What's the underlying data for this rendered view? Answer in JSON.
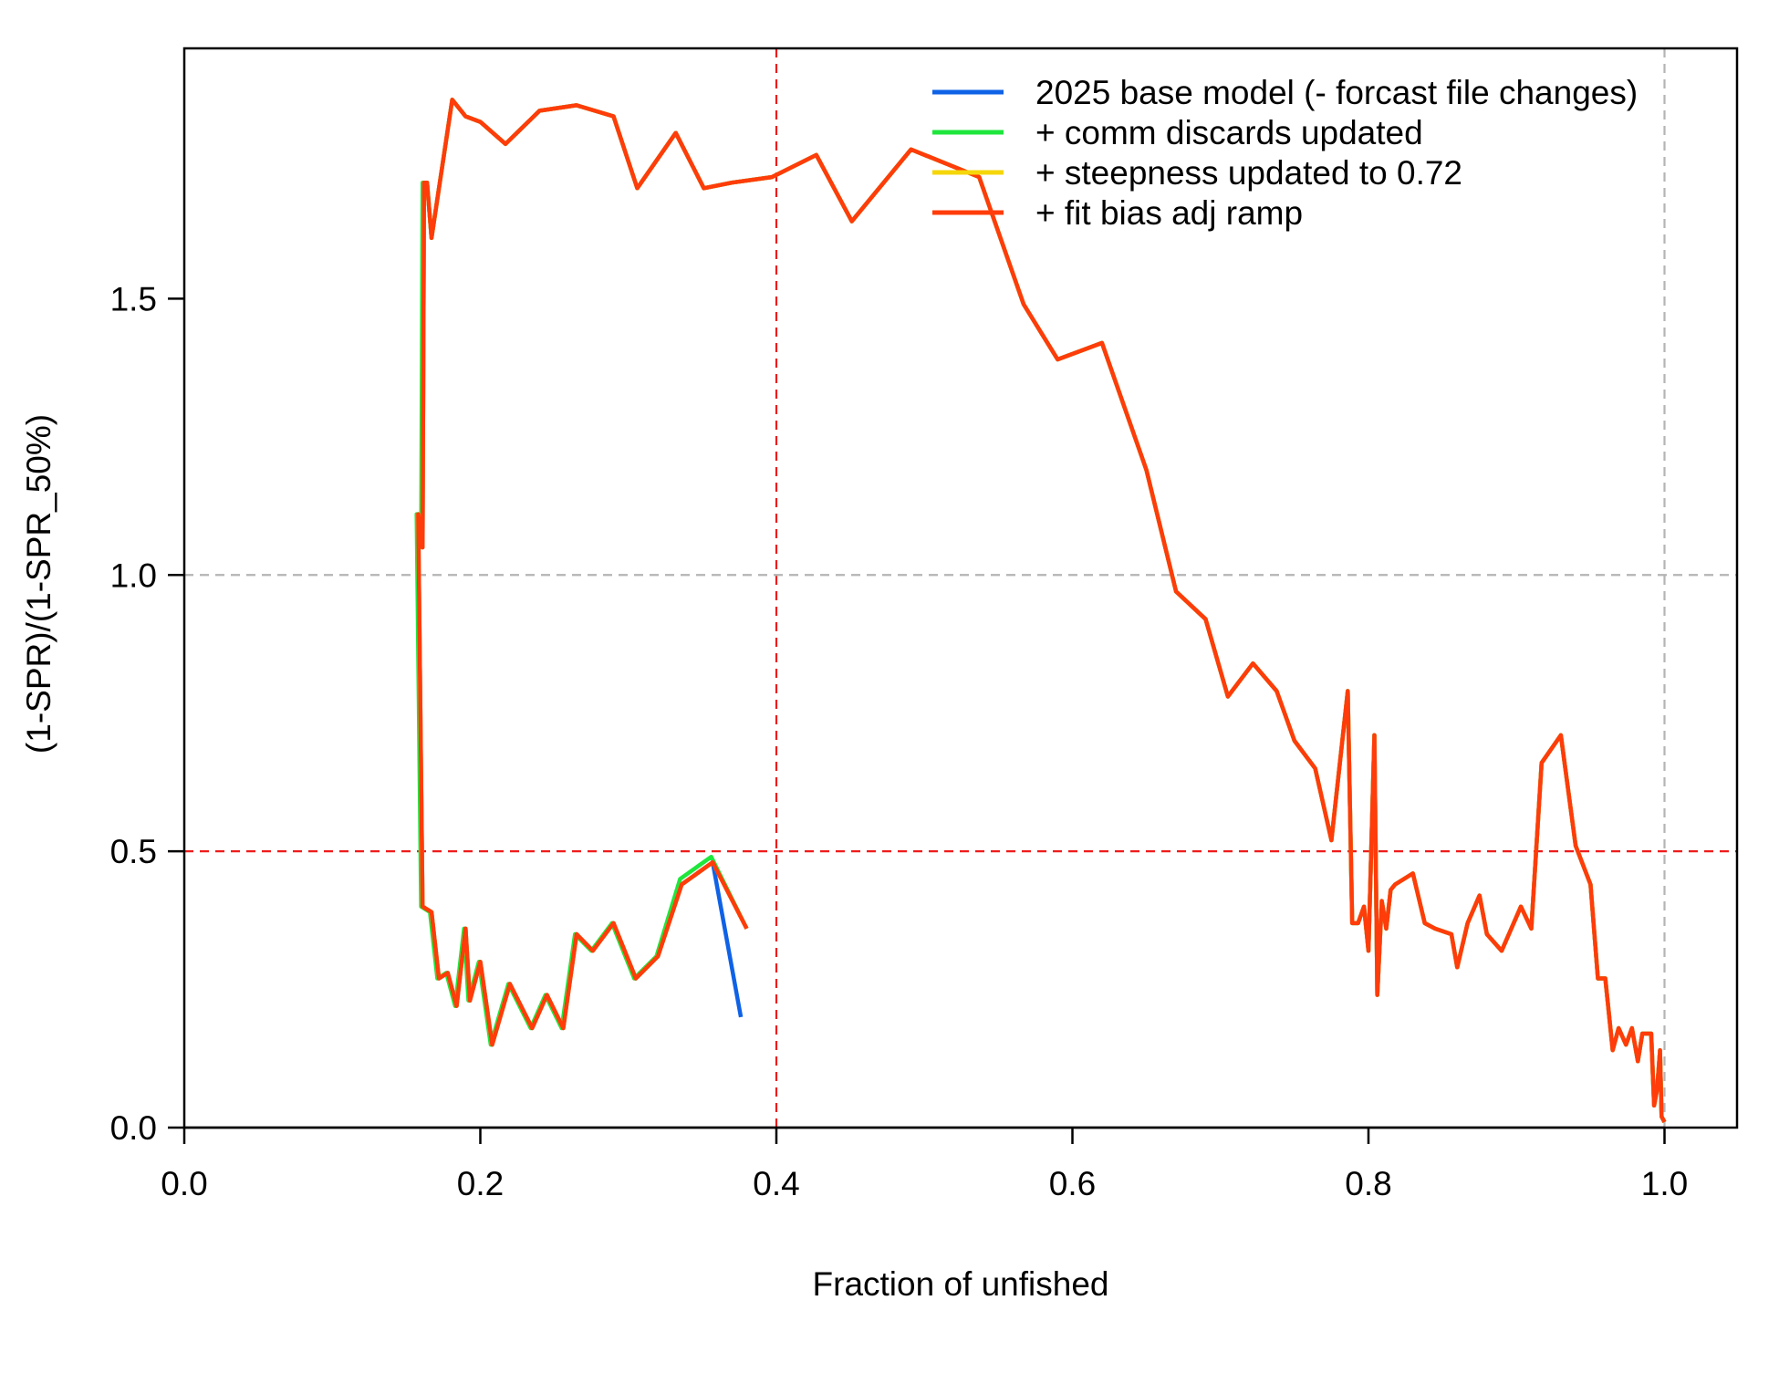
{
  "chart_data": {
    "type": "line",
    "x_label": "Fraction of unfished",
    "y_label": "(1-SPR)/(1-SPR_50%)",
    "xlim": [
      0,
      1.049
    ],
    "ylim": [
      0,
      1.953
    ],
    "xticks": [
      {
        "value": 0,
        "label": "0.0"
      },
      0.2,
      0.4,
      0.6,
      0.8,
      {
        "value": 1,
        "label": "1.0"
      }
    ],
    "yticks": [
      {
        "value": 0,
        "label": "0.0"
      },
      0.5,
      {
        "value": 1,
        "label": "1.0"
      },
      1.5
    ],
    "reference_lines": [
      {
        "axis": "x",
        "value": 0.4,
        "color": "#ee1c1c"
      },
      {
        "axis": "y",
        "value": 0.5,
        "color": "#ee1c1c"
      },
      {
        "axis": "x",
        "value": 1,
        "color": "#b4b4b4"
      },
      {
        "axis": "y",
        "value": 1,
        "color": "#b4b4b4"
      }
    ],
    "legend": "top-right",
    "series": [
      {
        "name": "2025 base model (- forcast file changes)",
        "color": "#0f62e6",
        "x": [
          1.0,
          0.998,
          0.997,
          0.995,
          0.993,
          0.991,
          0.988,
          0.985,
          0.982,
          0.978,
          0.974,
          0.969,
          0.965,
          0.96,
          0.955,
          0.95,
          0.94,
          0.93,
          0.917,
          0.91,
          0.903,
          0.89,
          0.88,
          0.875,
          0.867,
          0.86,
          0.856,
          0.845,
          0.838,
          0.83,
          0.818,
          0.815,
          0.812,
          0.809,
          0.806,
          0.804,
          0.8,
          0.797,
          0.793,
          0.789,
          0.786,
          0.775,
          0.764,
          0.75,
          0.738,
          0.722,
          0.705,
          0.69,
          0.67,
          0.65,
          0.62,
          0.59,
          0.567,
          0.537,
          0.491,
          0.451,
          0.427,
          0.397,
          0.37,
          0.351,
          0.332,
          0.306,
          0.29,
          0.265,
          0.24,
          0.217,
          0.2,
          0.19,
          0.181,
          0.167,
          0.164,
          0.162,
          0.161,
          0.158,
          0.161,
          0.167,
          0.172,
          0.178,
          0.184,
          0.19,
          0.193,
          0.2,
          0.208,
          0.22,
          0.235,
          0.245,
          0.256,
          0.265,
          0.276,
          0.29,
          0.305,
          0.32,
          0.336,
          0.357,
          0.376
        ],
        "values": [
          0.01,
          0.02,
          0.14,
          0.07,
          0.04,
          0.17,
          0.17,
          0.17,
          0.12,
          0.18,
          0.15,
          0.18,
          0.14,
          0.27,
          0.27,
          0.44,
          0.51,
          0.71,
          0.66,
          0.36,
          0.4,
          0.32,
          0.35,
          0.42,
          0.37,
          0.29,
          0.35,
          0.36,
          0.37,
          0.46,
          0.44,
          0.43,
          0.36,
          0.41,
          0.24,
          0.71,
          0.32,
          0.4,
          0.37,
          0.37,
          0.79,
          0.52,
          0.65,
          0.7,
          0.79,
          0.84,
          0.78,
          0.92,
          0.97,
          1.19,
          1.42,
          1.39,
          1.49,
          1.72,
          1.77,
          1.64,
          1.76,
          1.72,
          1.71,
          1.7,
          1.8,
          1.7,
          1.83,
          1.85,
          1.84,
          1.78,
          1.82,
          1.83,
          1.86,
          1.61,
          1.71,
          1.71,
          1.05,
          1.11,
          0.4,
          0.39,
          0.27,
          0.28,
          0.22,
          0.36,
          0.23,
          0.3,
          0.15,
          0.26,
          0.18,
          0.24,
          0.18,
          0.35,
          0.32,
          0.37,
          0.27,
          0.31,
          0.44,
          0.48,
          0.2
        ]
      },
      {
        "name": "+ comm discards updated",
        "color": "#1ee63c",
        "x": [
          1.0,
          0.998,
          0.997,
          0.995,
          0.993,
          0.991,
          0.988,
          0.985,
          0.982,
          0.978,
          0.974,
          0.969,
          0.965,
          0.96,
          0.955,
          0.95,
          0.94,
          0.93,
          0.917,
          0.91,
          0.903,
          0.89,
          0.88,
          0.875,
          0.867,
          0.86,
          0.856,
          0.845,
          0.838,
          0.83,
          0.818,
          0.815,
          0.812,
          0.809,
          0.806,
          0.804,
          0.8,
          0.797,
          0.793,
          0.789,
          0.786,
          0.775,
          0.764,
          0.75,
          0.738,
          0.722,
          0.705,
          0.69,
          0.67,
          0.65,
          0.62,
          0.59,
          0.567,
          0.537,
          0.491,
          0.451,
          0.427,
          0.397,
          0.37,
          0.351,
          0.332,
          0.306,
          0.29,
          0.265,
          0.24,
          0.217,
          0.2,
          0.19,
          0.181,
          0.167,
          0.164,
          0.161,
          0.16,
          0.157,
          0.16,
          0.166,
          0.171,
          0.177,
          0.183,
          0.189,
          0.192,
          0.199,
          0.207,
          0.219,
          0.234,
          0.244,
          0.255,
          0.264,
          0.275,
          0.289,
          0.304,
          0.319,
          0.335,
          0.356,
          0.38
        ],
        "values": [
          0.01,
          0.02,
          0.14,
          0.07,
          0.04,
          0.17,
          0.17,
          0.17,
          0.12,
          0.18,
          0.15,
          0.18,
          0.14,
          0.27,
          0.27,
          0.44,
          0.51,
          0.71,
          0.66,
          0.36,
          0.4,
          0.32,
          0.35,
          0.42,
          0.37,
          0.29,
          0.35,
          0.36,
          0.37,
          0.46,
          0.44,
          0.43,
          0.36,
          0.41,
          0.24,
          0.71,
          0.32,
          0.4,
          0.37,
          0.37,
          0.79,
          0.52,
          0.65,
          0.7,
          0.79,
          0.84,
          0.78,
          0.92,
          0.97,
          1.19,
          1.42,
          1.39,
          1.49,
          1.72,
          1.77,
          1.64,
          1.76,
          1.72,
          1.71,
          1.7,
          1.8,
          1.7,
          1.83,
          1.85,
          1.84,
          1.78,
          1.82,
          1.83,
          1.86,
          1.61,
          1.71,
          1.71,
          1.05,
          1.11,
          0.4,
          0.39,
          0.27,
          0.28,
          0.22,
          0.36,
          0.23,
          0.3,
          0.15,
          0.26,
          0.18,
          0.24,
          0.18,
          0.35,
          0.32,
          0.37,
          0.27,
          0.31,
          0.45,
          0.49,
          0.36
        ]
      },
      {
        "name": "+ steepness updated to 0.72",
        "color": "#f5d60a",
        "x": [
          1.0,
          0.998,
          0.997,
          0.995,
          0.993,
          0.991,
          0.988,
          0.985,
          0.982,
          0.978,
          0.974,
          0.969,
          0.965,
          0.96,
          0.955,
          0.95,
          0.94,
          0.93,
          0.917,
          0.91,
          0.903,
          0.89,
          0.88,
          0.875,
          0.867,
          0.86,
          0.856,
          0.845,
          0.838,
          0.83,
          0.818,
          0.815,
          0.812,
          0.809,
          0.806,
          0.804,
          0.8,
          0.797,
          0.793,
          0.789,
          0.786,
          0.775,
          0.764,
          0.75,
          0.738,
          0.722,
          0.705,
          0.69,
          0.67,
          0.65,
          0.62,
          0.59,
          0.567,
          0.537,
          0.491,
          0.451,
          0.427,
          0.397,
          0.37,
          0.351,
          0.332,
          0.306,
          0.29,
          0.265,
          0.24,
          0.217,
          0.2,
          0.19,
          0.181,
          0.167,
          0.164,
          0.162,
          0.161,
          0.158,
          0.161,
          0.167,
          0.172,
          0.178,
          0.184,
          0.19,
          0.193,
          0.2,
          0.208,
          0.22,
          0.235,
          0.245,
          0.256,
          0.265,
          0.276,
          0.29,
          0.305,
          0.32,
          0.336,
          0.357,
          0.38
        ],
        "values": [
          0.01,
          0.02,
          0.14,
          0.07,
          0.04,
          0.17,
          0.17,
          0.17,
          0.12,
          0.18,
          0.15,
          0.18,
          0.14,
          0.27,
          0.27,
          0.44,
          0.51,
          0.71,
          0.66,
          0.36,
          0.4,
          0.32,
          0.35,
          0.42,
          0.37,
          0.29,
          0.35,
          0.36,
          0.37,
          0.46,
          0.44,
          0.43,
          0.36,
          0.41,
          0.24,
          0.71,
          0.32,
          0.4,
          0.37,
          0.37,
          0.79,
          0.52,
          0.65,
          0.7,
          0.79,
          0.84,
          0.78,
          0.92,
          0.97,
          1.19,
          1.42,
          1.39,
          1.49,
          1.72,
          1.77,
          1.64,
          1.76,
          1.72,
          1.71,
          1.7,
          1.8,
          1.7,
          1.83,
          1.85,
          1.84,
          1.78,
          1.82,
          1.83,
          1.86,
          1.61,
          1.71,
          1.71,
          1.05,
          1.11,
          0.4,
          0.39,
          0.27,
          0.28,
          0.22,
          0.36,
          0.23,
          0.3,
          0.15,
          0.26,
          0.18,
          0.24,
          0.18,
          0.35,
          0.32,
          0.37,
          0.27,
          0.31,
          0.44,
          0.48,
          0.36
        ]
      },
      {
        "name": "+ fit bias adj ramp",
        "color": "#ff3c0a",
        "x": [
          1.0,
          0.998,
          0.997,
          0.995,
          0.993,
          0.991,
          0.988,
          0.985,
          0.982,
          0.978,
          0.974,
          0.969,
          0.965,
          0.96,
          0.955,
          0.95,
          0.94,
          0.93,
          0.917,
          0.91,
          0.903,
          0.89,
          0.88,
          0.875,
          0.867,
          0.86,
          0.856,
          0.845,
          0.838,
          0.83,
          0.818,
          0.815,
          0.812,
          0.809,
          0.806,
          0.804,
          0.8,
          0.797,
          0.793,
          0.789,
          0.786,
          0.775,
          0.764,
          0.75,
          0.738,
          0.722,
          0.705,
          0.69,
          0.67,
          0.65,
          0.62,
          0.59,
          0.567,
          0.537,
          0.491,
          0.451,
          0.427,
          0.397,
          0.37,
          0.351,
          0.332,
          0.306,
          0.29,
          0.265,
          0.24,
          0.217,
          0.2,
          0.19,
          0.181,
          0.167,
          0.164,
          0.162,
          0.161,
          0.158,
          0.161,
          0.167,
          0.172,
          0.178,
          0.184,
          0.19,
          0.193,
          0.2,
          0.208,
          0.22,
          0.235,
          0.245,
          0.256,
          0.265,
          0.276,
          0.29,
          0.305,
          0.32,
          0.336,
          0.357,
          0.38
        ],
        "values": [
          0.01,
          0.02,
          0.14,
          0.07,
          0.04,
          0.17,
          0.17,
          0.17,
          0.12,
          0.18,
          0.15,
          0.18,
          0.14,
          0.27,
          0.27,
          0.44,
          0.51,
          0.71,
          0.66,
          0.36,
          0.4,
          0.32,
          0.35,
          0.42,
          0.37,
          0.29,
          0.35,
          0.36,
          0.37,
          0.46,
          0.44,
          0.43,
          0.36,
          0.41,
          0.24,
          0.71,
          0.32,
          0.4,
          0.37,
          0.37,
          0.79,
          0.52,
          0.65,
          0.7,
          0.79,
          0.84,
          0.78,
          0.92,
          0.97,
          1.19,
          1.42,
          1.39,
          1.49,
          1.72,
          1.77,
          1.64,
          1.76,
          1.72,
          1.71,
          1.7,
          1.8,
          1.7,
          1.83,
          1.85,
          1.84,
          1.78,
          1.82,
          1.83,
          1.86,
          1.61,
          1.71,
          1.71,
          1.05,
          1.11,
          0.4,
          0.39,
          0.27,
          0.28,
          0.22,
          0.36,
          0.23,
          0.3,
          0.15,
          0.26,
          0.18,
          0.24,
          0.18,
          0.35,
          0.32,
          0.37,
          0.27,
          0.31,
          0.44,
          0.48,
          0.36
        ]
      }
    ]
  }
}
